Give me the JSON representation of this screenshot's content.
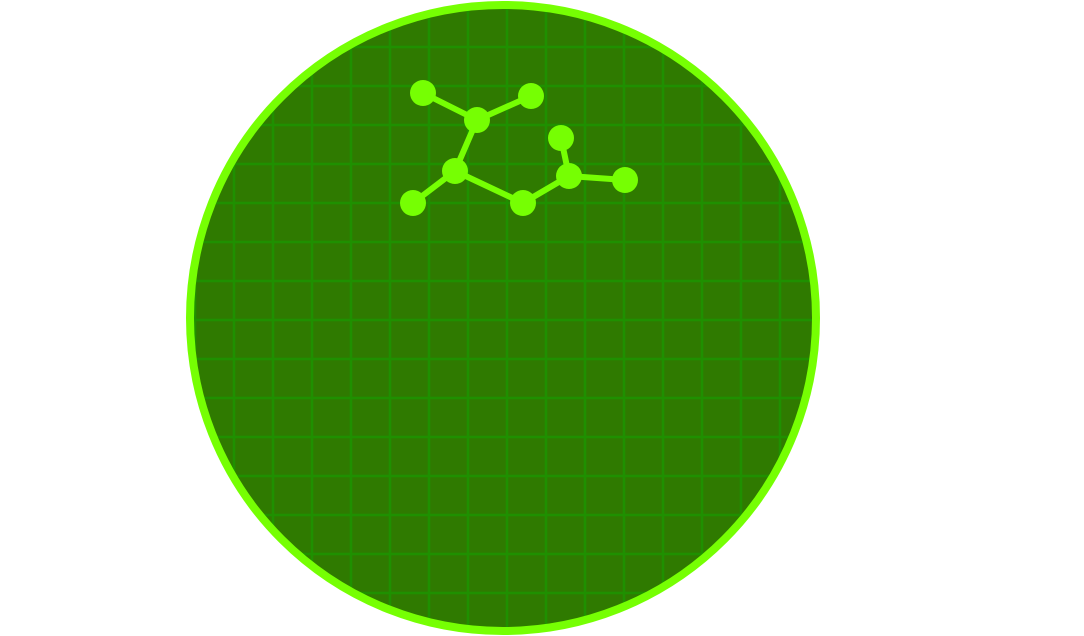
{
  "colors": {
    "background": "#ffffff",
    "dish_fill": "#2f7a00",
    "dish_border": "#76ff03",
    "grid_line": "#1f9000",
    "molecule": "#76ff03"
  },
  "dish": {
    "icon": "petri-dish-icon"
  },
  "molecule": {
    "icon": "molecule-icon",
    "atom_count": 9,
    "bond_count": 8
  }
}
